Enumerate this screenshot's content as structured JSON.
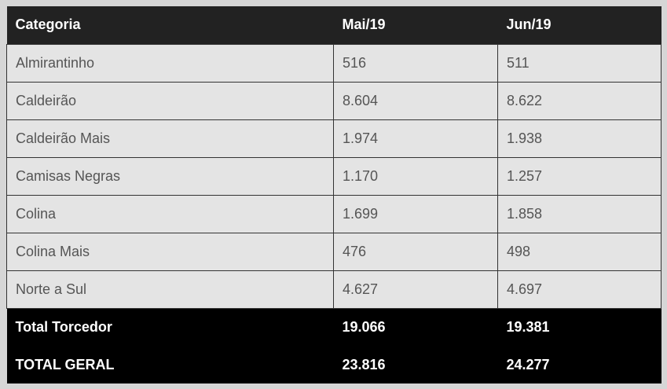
{
  "table": {
    "header": [
      "Categoria",
      "Mai/19",
      "Jun/19"
    ],
    "rows": [
      [
        "Almirantinho",
        "516",
        "511"
      ],
      [
        "Caldeirão",
        "8.604",
        "8.622"
      ],
      [
        "Caldeirão Mais",
        "1.974",
        "1.938"
      ],
      [
        "Camisas Negras",
        "1.170",
        "1.257"
      ],
      [
        "Colina",
        "1.699",
        "1.858"
      ],
      [
        "Colina Mais",
        "476",
        "498"
      ],
      [
        "Norte a Sul",
        "4.627",
        "4.697"
      ]
    ],
    "totals": [
      [
        "Total Torcedor",
        "19.066",
        "19.381"
      ],
      [
        "TOTAL GERAL",
        "23.816",
        "24.277"
      ]
    ]
  }
}
